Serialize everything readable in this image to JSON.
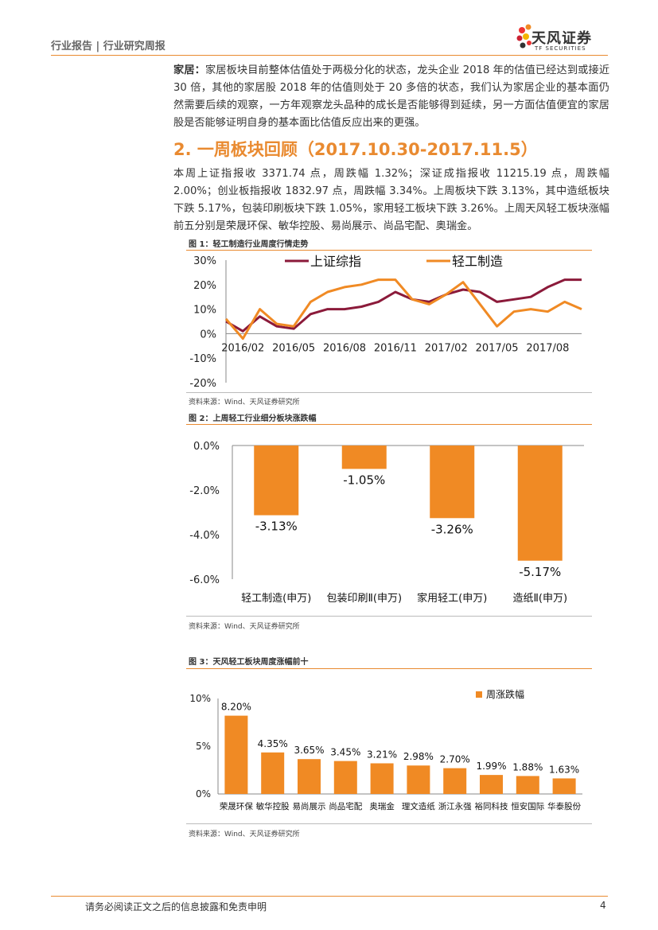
{
  "header": {
    "breadcrumb": "行业报告 | 行业研究周报",
    "logo_cn": "天风证券",
    "logo_en": "TF SECURITIES"
  },
  "intro": {
    "label": "家居：",
    "text": "家居板块目前整体估值处于两极分化的状态，龙头企业 2018 年的估值已经达到或接近 30 倍，其他的家居股 2018 年的估值则处于 20 多倍的状态，我们认为家居企业的基本面仍然需要后续的观察，一方年观察龙头品种的成长是否能够得到延续，另一方面估值便宜的家居股是否能够证明自身的基本面比估值反应出来的更强。"
  },
  "section": {
    "title": "2. 一周板块回顾（2017.10.30-2017.11.5）",
    "body": "本周上证指报收 3371.74 点，周跌幅 1.32%；深证成指报收 11215.19 点，周跌幅 2.00%；创业板指报收 1832.97 点，周跌幅 3.34%。上周板块下跌 3.13%，其中造纸板块下跌 5.17%，包装印刷板块下跌 1.05%，家用轻工板块下跌 3.26%。上周天风轻工板块涨幅前五分别是荣晟环保、敏华控股、易尚展示、尚品宅配、奥瑞金。"
  },
  "figures": {
    "fig1_title": "图 1：轻工制造行业周度行情走势",
    "fig2_title": "图 2：上周轻工行业细分板块涨跌幅",
    "fig3_title": "图 3：天风轻工板块周度涨幅前十",
    "source": "资料来源：Wind、天风证券研究所"
  },
  "chart_data": [
    {
      "type": "line",
      "x": [
        "2016/01",
        "2016/02",
        "2016/03",
        "2016/04",
        "2016/05",
        "2016/06",
        "2016/07",
        "2016/08",
        "2016/09",
        "2016/10",
        "2016/11",
        "2016/12",
        "2017/01",
        "2017/02",
        "2017/03",
        "2017/04",
        "2017/05",
        "2017/06",
        "2017/07",
        "2017/08",
        "2017/09",
        "2017/10"
      ],
      "x_ticks": [
        "2016/02",
        "2016/05",
        "2016/08",
        "2016/11",
        "2017/02",
        "2017/05",
        "2017/08"
      ],
      "series": [
        {
          "name": "上证综指",
          "color": "#8b1a3a",
          "values": [
            5,
            1,
            7,
            3,
            2,
            8,
            10,
            10,
            11,
            13,
            17,
            14,
            13,
            16,
            18,
            17,
            13,
            14,
            15,
            19,
            22,
            22
          ]
        },
        {
          "name": "轻工制造",
          "color": "#f08a24",
          "values": [
            6,
            -2,
            10,
            4,
            3,
            13,
            17,
            19,
            20,
            22,
            22,
            14,
            12,
            16,
            21,
            12,
            3,
            9,
            10,
            9,
            13,
            10
          ]
        }
      ],
      "ylim": [
        -20,
        30
      ],
      "y_ticks": [
        "30%",
        "20%",
        "10%",
        "0%",
        "-10%",
        "-20%"
      ],
      "legend": "top"
    },
    {
      "type": "bar",
      "categories": [
        "轻工制造(申万)",
        "包装印刷Ⅱ(申万)",
        "家用轻工(申万)",
        "造纸Ⅱ(申万)"
      ],
      "values": [
        -3.13,
        -1.05,
        -3.26,
        -5.17
      ],
      "labels": [
        "-3.13%",
        "-1.05%",
        "-3.26%",
        "-5.17%"
      ],
      "ylim": [
        -6,
        0
      ],
      "y_ticks": [
        "0.0%",
        "-2.0%",
        "-4.0%",
        "-6.0%"
      ],
      "color": "#f08a24"
    },
    {
      "type": "bar",
      "categories": [
        "荣晟环保",
        "敏华控股",
        "易尚展示",
        "尚品宅配",
        "奥瑞金",
        "理文造纸",
        "浙江永强",
        "裕同科技",
        "恒安国际",
        "华泰股份"
      ],
      "values": [
        8.2,
        4.35,
        3.65,
        3.45,
        3.21,
        2.98,
        2.7,
        1.99,
        1.88,
        1.63
      ],
      "labels": [
        "8.20%",
        "4.35%",
        "3.65%",
        "3.45%",
        "3.21%",
        "2.98%",
        "2.70%",
        "1.99%",
        "1.88%",
        "1.63%"
      ],
      "series_name": "周涨跌幅",
      "ylim": [
        0,
        10
      ],
      "y_ticks": [
        "10%",
        "5%",
        "0%"
      ],
      "color": "#f08a24"
    }
  ],
  "footer": {
    "disclaimer": "请务必阅读正文之后的信息披露和免责申明",
    "page": "4"
  },
  "colors": {
    "accent": "#e98a30",
    "bar": "#f08a24",
    "index_line": "#8b1a3a"
  }
}
